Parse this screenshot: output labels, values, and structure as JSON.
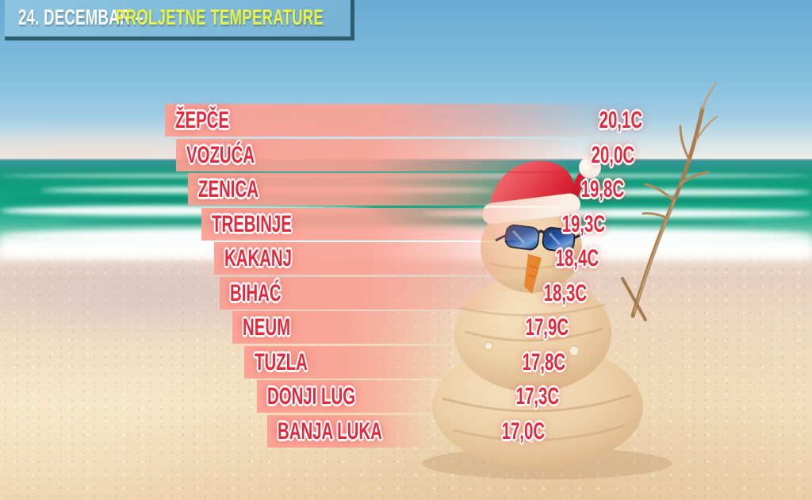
{
  "header": {
    "date_part": "24. DECEMBAR –",
    "title_part": "PROLJETNE TEMPERATURE"
  },
  "chart_data": {
    "type": "bar",
    "orientation": "horizontal",
    "title": "24. DECEMBAR – PROLJETNE TEMPERATURE",
    "categories": [
      "ŽEPČE",
      "VOZUĆA",
      "ZENICA",
      "TREBINJE",
      "KAKANJ",
      "BIHAĆ",
      "NEUM",
      "TUZLA",
      "DONJI LUG",
      "BANJA LUKA"
    ],
    "values": [
      20.1,
      20.0,
      19.8,
      19.3,
      18.4,
      18.3,
      17.9,
      17.8,
      17.3,
      17.0
    ],
    "value_labels": [
      "20,1C",
      "20,0C",
      "19,8C",
      "19,3C",
      "18,4C",
      "18,3C",
      "17,9C",
      "17,8C",
      "17,3C",
      "17,0C"
    ],
    "unit": "C",
    "decimal_separator": ",",
    "sort_order": "descending",
    "value_range": [
      17.0,
      20.1
    ],
    "legend": "none",
    "grid": false
  },
  "scene": {
    "background": "beach-photo",
    "elements": [
      "sky",
      "ocean-waves",
      "wave-foam",
      "sandy-beach",
      "sand-snowman",
      "santa-hat",
      "sunglasses",
      "carrot-nose",
      "dry-branch"
    ]
  },
  "colors": {
    "header_band": "#7fbadb",
    "header_shadow": "#2d5c6d",
    "header_text": "#ffffff",
    "header_accent": "#e9f243",
    "bar_fill": "#faa093",
    "label_text": "#e5293b",
    "label_outline": "#ffffff",
    "sea_green": "#0da07c",
    "sand": "#f2e0c4"
  }
}
